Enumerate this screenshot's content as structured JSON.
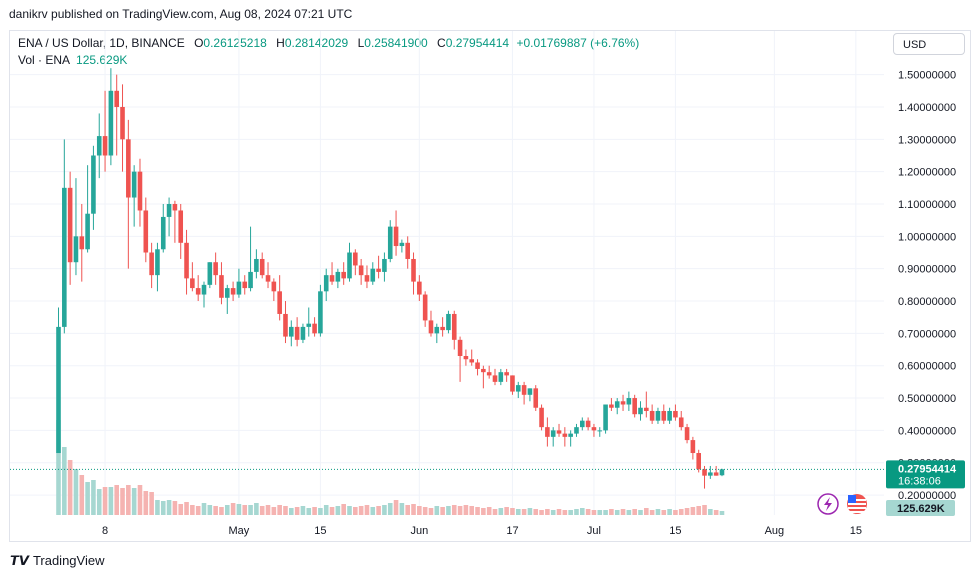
{
  "header": {
    "published": "danikrv published on TradingView.com, Aug 08, 2024 07:21 UTC"
  },
  "legend": {
    "symbol": "ENA / US Dollar, 1D, BINANCE",
    "o_label": "O",
    "o_value": "0.26125218",
    "h_label": "H",
    "h_value": "0.28142029",
    "l_label": "L",
    "l_value": "0.25841900",
    "c_label": "C",
    "c_value": "0.27954414",
    "change": "+0.01769887 (+6.76%)",
    "vol_label": "Vol · ENA",
    "vol_value": "125.629K"
  },
  "currency_button": "USD",
  "price_badge": {
    "price": "0.27954414",
    "countdown": "16:38:06"
  },
  "volume_badge": "125.629K",
  "footer": {
    "brand": "TradingView"
  },
  "colors": {
    "up": "#26a69a",
    "down": "#ef5350",
    "up_vol": "#a6d7d1",
    "down_vol": "#f5b3b1",
    "grid": "#f0f3fa",
    "last_price": "#089981"
  },
  "chart_data": {
    "type": "candlestick",
    "y_ticks": [
      "1.50000000",
      "1.40000000",
      "1.30000000",
      "1.20000000",
      "1.10000000",
      "1.00000000",
      "0.90000000",
      "0.80000000",
      "0.70000000",
      "0.60000000",
      "0.50000000",
      "0.40000000",
      "0.30000000",
      "0.20000000"
    ],
    "ylim": [
      0.16,
      1.57
    ],
    "x_ticks": [
      {
        "label": "8",
        "index": 8
      },
      {
        "label": "May",
        "index": 31
      },
      {
        "label": "15",
        "index": 45
      },
      {
        "label": "Jun",
        "index": 62
      },
      {
        "label": "17",
        "index": 78
      },
      {
        "label": "Jul",
        "index": 92
      },
      {
        "label": "15",
        "index": 106
      },
      {
        "label": "Aug",
        "index": 123
      },
      {
        "label": "15",
        "index": 137
      }
    ],
    "first_date": "2024-04-02",
    "last_price": 0.27954414,
    "candles": [
      [
        0.33,
        0.78,
        0.33,
        0.72
      ],
      [
        0.72,
        1.3,
        0.7,
        1.15
      ],
      [
        1.15,
        1.2,
        0.85,
        0.92
      ],
      [
        0.92,
        1.18,
        0.88,
        1.0
      ],
      [
        1.0,
        1.1,
        0.86,
        0.96
      ],
      [
        0.96,
        1.22,
        0.95,
        1.07
      ],
      [
        1.07,
        1.28,
        1.02,
        1.25
      ],
      [
        1.25,
        1.38,
        1.18,
        1.31
      ],
      [
        1.31,
        1.45,
        1.2,
        1.25
      ],
      [
        1.25,
        1.52,
        1.22,
        1.45
      ],
      [
        1.45,
        1.5,
        1.25,
        1.4
      ],
      [
        1.4,
        1.47,
        1.2,
        1.3
      ],
      [
        1.3,
        1.36,
        0.9,
        1.12
      ],
      [
        1.12,
        1.22,
        1.03,
        1.2
      ],
      [
        1.2,
        1.24,
        1.03,
        1.08
      ],
      [
        1.08,
        1.12,
        0.92,
        0.95
      ],
      [
        0.95,
        0.98,
        0.84,
        0.88
      ],
      [
        0.88,
        0.98,
        0.83,
        0.96
      ],
      [
        0.96,
        1.1,
        0.95,
        1.06
      ],
      [
        1.06,
        1.12,
        1.0,
        1.1
      ],
      [
        1.1,
        1.11,
        0.98,
        1.08
      ],
      [
        1.08,
        1.1,
        0.93,
        0.98
      ],
      [
        0.98,
        1.02,
        0.82,
        0.87
      ],
      [
        0.87,
        0.92,
        0.83,
        0.84
      ],
      [
        0.84,
        0.88,
        0.8,
        0.82
      ],
      [
        0.82,
        0.86,
        0.78,
        0.85
      ],
      [
        0.85,
        0.92,
        0.84,
        0.92
      ],
      [
        0.92,
        0.95,
        0.85,
        0.88
      ],
      [
        0.88,
        0.92,
        0.79,
        0.81
      ],
      [
        0.81,
        0.85,
        0.76,
        0.84
      ],
      [
        0.84,
        0.86,
        0.8,
        0.82
      ],
      [
        0.82,
        0.9,
        0.81,
        0.86
      ],
      [
        0.86,
        0.88,
        0.82,
        0.84
      ],
      [
        0.84,
        1.03,
        0.83,
        0.89
      ],
      [
        0.89,
        0.96,
        0.87,
        0.93
      ],
      [
        0.93,
        0.95,
        0.87,
        0.88
      ],
      [
        0.88,
        0.92,
        0.84,
        0.86
      ],
      [
        0.86,
        0.87,
        0.8,
        0.83
      ],
      [
        0.83,
        0.88,
        0.74,
        0.76
      ],
      [
        0.76,
        0.8,
        0.67,
        0.69
      ],
      [
        0.69,
        0.74,
        0.66,
        0.72
      ],
      [
        0.72,
        0.75,
        0.66,
        0.68
      ],
      [
        0.68,
        0.73,
        0.67,
        0.72
      ],
      [
        0.72,
        0.78,
        0.69,
        0.73
      ],
      [
        0.73,
        0.75,
        0.69,
        0.7
      ],
      [
        0.7,
        0.85,
        0.69,
        0.83
      ],
      [
        0.83,
        0.9,
        0.8,
        0.88
      ],
      [
        0.88,
        0.92,
        0.85,
        0.86
      ],
      [
        0.86,
        0.9,
        0.84,
        0.89
      ],
      [
        0.89,
        0.92,
        0.85,
        0.87
      ],
      [
        0.87,
        0.98,
        0.86,
        0.95
      ],
      [
        0.95,
        0.96,
        0.88,
        0.91
      ],
      [
        0.91,
        0.93,
        0.85,
        0.88
      ],
      [
        0.88,
        0.91,
        0.84,
        0.86
      ],
      [
        0.86,
        0.92,
        0.85,
        0.9
      ],
      [
        0.9,
        0.94,
        0.87,
        0.89
      ],
      [
        0.89,
        0.95,
        0.86,
        0.93
      ],
      [
        0.93,
        1.05,
        0.92,
        1.03
      ],
      [
        1.03,
        1.08,
        0.94,
        0.97
      ],
      [
        0.97,
        0.99,
        0.95,
        0.98
      ],
      [
        0.98,
        1.0,
        0.9,
        0.93
      ],
      [
        0.93,
        0.95,
        0.82,
        0.86
      ],
      [
        0.86,
        0.88,
        0.8,
        0.82
      ],
      [
        0.82,
        0.83,
        0.72,
        0.74
      ],
      [
        0.74,
        0.77,
        0.69,
        0.7
      ],
      [
        0.7,
        0.73,
        0.67,
        0.72
      ],
      [
        0.72,
        0.75,
        0.69,
        0.71
      ],
      [
        0.71,
        0.77,
        0.7,
        0.76
      ],
      [
        0.76,
        0.77,
        0.65,
        0.68
      ],
      [
        0.68,
        0.69,
        0.55,
        0.63
      ],
      [
        0.63,
        0.65,
        0.6,
        0.62
      ],
      [
        0.62,
        0.65,
        0.6,
        0.61
      ],
      [
        0.61,
        0.62,
        0.57,
        0.59
      ],
      [
        0.59,
        0.6,
        0.53,
        0.58
      ],
      [
        0.58,
        0.6,
        0.56,
        0.57
      ],
      [
        0.57,
        0.59,
        0.54,
        0.55
      ],
      [
        0.55,
        0.59,
        0.54,
        0.58
      ],
      [
        0.58,
        0.59,
        0.55,
        0.57
      ],
      [
        0.57,
        0.57,
        0.51,
        0.52
      ],
      [
        0.52,
        0.55,
        0.5,
        0.54
      ],
      [
        0.54,
        0.55,
        0.48,
        0.51
      ],
      [
        0.51,
        0.53,
        0.49,
        0.53
      ],
      [
        0.53,
        0.54,
        0.46,
        0.47
      ],
      [
        0.47,
        0.48,
        0.4,
        0.41
      ],
      [
        0.41,
        0.44,
        0.35,
        0.38
      ],
      [
        0.38,
        0.41,
        0.35,
        0.4
      ],
      [
        0.4,
        0.42,
        0.38,
        0.39
      ],
      [
        0.39,
        0.41,
        0.35,
        0.38
      ],
      [
        0.38,
        0.4,
        0.35,
        0.39
      ],
      [
        0.39,
        0.42,
        0.38,
        0.41
      ],
      [
        0.41,
        0.44,
        0.4,
        0.43
      ],
      [
        0.43,
        0.44,
        0.4,
        0.41
      ],
      [
        0.41,
        0.42,
        0.38,
        0.4
      ],
      [
        0.4,
        0.41,
        0.38,
        0.4
      ],
      [
        0.4,
        0.48,
        0.39,
        0.48
      ],
      [
        0.48,
        0.5,
        0.46,
        0.47
      ],
      [
        0.47,
        0.5,
        0.45,
        0.49
      ],
      [
        0.49,
        0.51,
        0.46,
        0.48
      ],
      [
        0.48,
        0.52,
        0.46,
        0.5
      ],
      [
        0.5,
        0.51,
        0.44,
        0.45
      ],
      [
        0.45,
        0.49,
        0.43,
        0.47
      ],
      [
        0.47,
        0.52,
        0.44,
        0.46
      ],
      [
        0.46,
        0.48,
        0.42,
        0.43
      ],
      [
        0.43,
        0.47,
        0.42,
        0.46
      ],
      [
        0.46,
        0.48,
        0.42,
        0.43
      ],
      [
        0.43,
        0.47,
        0.42,
        0.46
      ],
      [
        0.46,
        0.48,
        0.43,
        0.44
      ],
      [
        0.44,
        0.46,
        0.4,
        0.41
      ],
      [
        0.41,
        0.42,
        0.36,
        0.37
      ],
      [
        0.37,
        0.38,
        0.31,
        0.33
      ],
      [
        0.33,
        0.34,
        0.27,
        0.28
      ],
      [
        0.28,
        0.29,
        0.22,
        0.26
      ],
      [
        0.26,
        0.29,
        0.25,
        0.27
      ],
      [
        0.27,
        0.29,
        0.26,
        0.26
      ],
      [
        0.26125218,
        0.28142029,
        0.258419,
        0.27954414
      ]
    ],
    "volumes": [
      0.95,
      0.68,
      0.55,
      0.46,
      0.4,
      0.33,
      0.35,
      0.26,
      0.28,
      0.28,
      0.3,
      0.27,
      0.3,
      0.27,
      0.3,
      0.24,
      0.23,
      0.15,
      0.14,
      0.15,
      0.14,
      0.11,
      0.13,
      0.1,
      0.09,
      0.12,
      0.1,
      0.09,
      0.08,
      0.1,
      0.12,
      0.11,
      0.1,
      0.1,
      0.12,
      0.09,
      0.1,
      0.08,
      0.1,
      0.09,
      0.07,
      0.08,
      0.09,
      0.07,
      0.08,
      0.07,
      0.1,
      0.08,
      0.09,
      0.11,
      0.09,
      0.08,
      0.09,
      0.1,
      0.08,
      0.09,
      0.1,
      0.12,
      0.15,
      0.12,
      0.1,
      0.11,
      0.09,
      0.08,
      0.07,
      0.09,
      0.08,
      0.09,
      0.1,
      0.09,
      0.1,
      0.09,
      0.08,
      0.07,
      0.08,
      0.06,
      0.07,
      0.08,
      0.07,
      0.06,
      0.06,
      0.07,
      0.06,
      0.05,
      0.06,
      0.05,
      0.06,
      0.05,
      0.05,
      0.06,
      0.07,
      0.06,
      0.05,
      0.05,
      0.05,
      0.06,
      0.05,
      0.06,
      0.05,
      0.06,
      0.05,
      0.07,
      0.05,
      0.06,
      0.05,
      0.06,
      0.05,
      0.06,
      0.07,
      0.08,
      0.09,
      0.1,
      0.06,
      0.05,
      0.04
    ]
  }
}
